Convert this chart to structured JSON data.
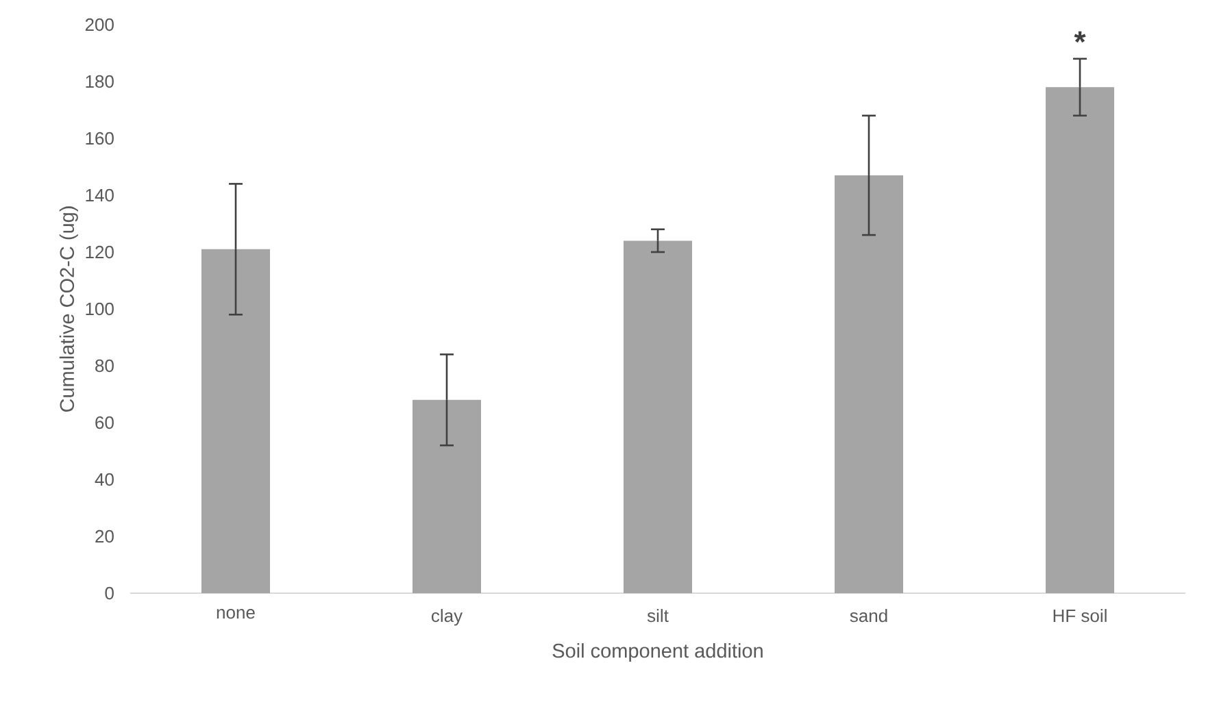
{
  "chart_data": {
    "type": "bar",
    "xlabel": "Soil component addition",
    "ylabel": "Cumulative CO2-C (ug)",
    "categories": [
      "none",
      "clay",
      "silt",
      "sand",
      "HF soil"
    ],
    "values": [
      121,
      68,
      124,
      147,
      178
    ],
    "errors": [
      23,
      16,
      4,
      21,
      10
    ],
    "color": "#a5a5a5",
    "ylim": [
      0,
      200
    ],
    "yticks": [
      0,
      20,
      40,
      60,
      80,
      100,
      120,
      140,
      160,
      180,
      200
    ],
    "annotations": [
      "*"
    ]
  }
}
